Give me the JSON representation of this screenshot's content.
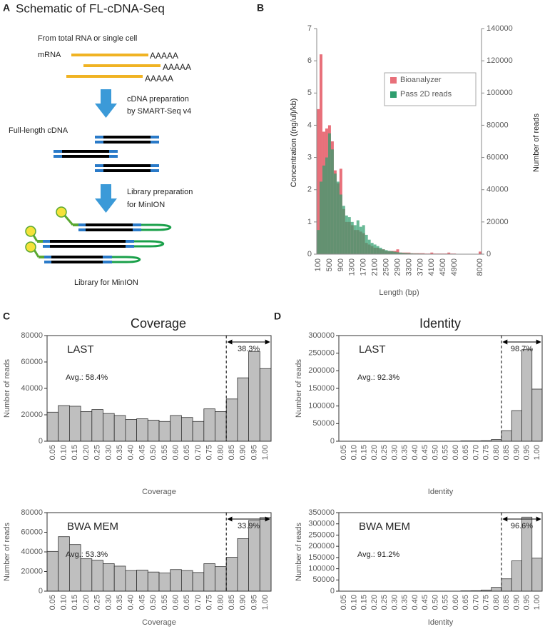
{
  "panels": [
    {
      "letter": "A",
      "title": "Schematic of FL-cDNA-Seq"
    },
    {
      "letter": "B"
    },
    {
      "letter": "C",
      "title": "Coverage"
    },
    {
      "letter": "D",
      "title": "Identity"
    }
  ],
  "schematic": {
    "source": "From  total RNA or single cell",
    "mrna": "mRNA",
    "polya": [
      "AAAAA",
      "AAAAA",
      "AAAAA"
    ],
    "step1": [
      "cDNA preparation",
      "by SMART-Seq v4"
    ],
    "cdna": "Full-length cDNA",
    "step2": [
      "Library preparation",
      "for MinION"
    ],
    "library": "Library for MinION"
  },
  "chart_data": [
    {
      "type": "histogram",
      "xlabel": "Length (bp)",
      "ylabel": "Concentration ((ng/ul)/kb)",
      "y2label": "Number of reads",
      "categories": [
        "100",
        null,
        null,
        null,
        "500",
        null,
        null,
        null,
        "900",
        null,
        null,
        null,
        "1300",
        null,
        null,
        null,
        "1700",
        null,
        null,
        null,
        "2100",
        null,
        null,
        null,
        "2500",
        null,
        null,
        null,
        "2900",
        null,
        null,
        null,
        "3300",
        null,
        null,
        null,
        "3700",
        null,
        null,
        null,
        "4100",
        null,
        null,
        null,
        "4500",
        null,
        null,
        null,
        "4900",
        null,
        null,
        null,
        null,
        null,
        null,
        null,
        null,
        "8000"
      ],
      "series": [
        {
          "name": "Bioanalyzer",
          "color": "#e8707a",
          "axis": "y",
          "values": [
            4.5,
            6.2,
            3.8,
            3.9,
            4.0,
            3.5,
            2.6,
            2.2,
            2.65,
            1.4,
            1.0,
            1.0,
            0.9,
            0.75,
            0.75,
            0.7,
            0.65,
            0.35,
            0.3,
            0.25,
            0.2,
            0.2,
            0.15,
            0.15,
            0.1,
            0.1,
            0.1,
            0.1,
            0.15,
            0.05,
            0.05,
            0.05,
            0.05,
            0.03,
            0.03,
            0.03,
            0.03,
            0.03,
            0.02,
            0.02,
            0.05,
            0.02,
            0.02,
            0.02,
            0.02,
            0.02,
            0.05,
            0.02,
            0.02,
            0.01,
            0.01,
            0.01,
            0.01,
            0.01,
            0.01,
            0.01,
            0.01,
            0.08
          ]
        },
        {
          "name": "Pass 2D reads",
          "color": "#2f9e6e",
          "axis": "y2",
          "values": [
            15000,
            45000,
            55000,
            60000,
            75000,
            65000,
            50000,
            45000,
            37000,
            30000,
            24000,
            23000,
            20000,
            18000,
            21000,
            17000,
            18000,
            12000,
            9000,
            7000,
            6000,
            5000,
            4000,
            3000,
            2500,
            2000,
            1800,
            1500,
            1200,
            1000,
            800,
            700,
            600,
            500,
            400,
            400,
            300,
            300,
            200,
            200,
            200,
            200,
            100,
            100,
            100,
            100,
            100,
            100,
            100,
            0,
            0,
            0,
            0,
            0,
            0,
            0,
            0,
            0
          ]
        }
      ],
      "ylim": [
        0,
        7
      ],
      "yticks": [
        0,
        1,
        2,
        3,
        4,
        5,
        6,
        7
      ],
      "y2lim": [
        0,
        140000
      ],
      "y2ticks": [
        0,
        20000,
        40000,
        60000,
        80000,
        100000,
        120000,
        140000
      ],
      "legend": "upper right"
    },
    {
      "type": "bar",
      "title": "LAST",
      "xlabel": "Coverage",
      "ylabel": "Number of reads",
      "annotations": [
        "Avg.: 58.4%",
        "38.3%"
      ],
      "color": "#bfbfbf",
      "categories": [
        "0.05",
        "0.10",
        "0.15",
        "0.20",
        "0.25",
        "0.30",
        "0.35",
        "0.40",
        "0.45",
        "0.50",
        "0.55",
        "0.60",
        "0.65",
        "0.70",
        "0.75",
        "0.80",
        "0.85",
        "0.90",
        "0.95",
        "1.00"
      ],
      "values": [
        22000,
        27000,
        26500,
        22500,
        24000,
        21000,
        19500,
        16500,
        17000,
        16000,
        15000,
        19500,
        18000,
        15000,
        24500,
        22500,
        32000,
        48000,
        68000,
        55000
      ],
      "ylim": [
        0,
        80000
      ],
      "yticks": [
        0,
        20000,
        40000,
        60000,
        80000
      ]
    },
    {
      "type": "bar",
      "title": "BWA MEM",
      "xlabel": "Coverage",
      "ylabel": "Number of reads",
      "annotations": [
        "Avg.: 53.3%",
        "33.9%"
      ],
      "color": "#bfbfbf",
      "categories": [
        "0.05",
        "0.10",
        "0.15",
        "0.20",
        "0.25",
        "0.30",
        "0.35",
        "0.40",
        "0.45",
        "0.50",
        "0.55",
        "0.60",
        "0.65",
        "0.70",
        "0.75",
        "0.80",
        "0.85",
        "0.90",
        "0.95",
        "1.00"
      ],
      "values": [
        40500,
        55500,
        47500,
        33000,
        31500,
        28000,
        25500,
        21000,
        21500,
        19500,
        18500,
        22000,
        21000,
        19000,
        28000,
        25000,
        34500,
        53500,
        72000,
        75000
      ],
      "ylim": [
        0,
        80000
      ],
      "yticks": [
        0,
        20000,
        40000,
        60000,
        80000
      ]
    },
    {
      "type": "bar",
      "title": "LAST",
      "xlabel": "Identity",
      "ylabel": "Number of reads",
      "annotations": [
        "Avg.: 92.3%",
        "98.7%"
      ],
      "color": "#bfbfbf",
      "categories": [
        "0.05",
        "0.10",
        "0.15",
        "0.20",
        "0.25",
        "0.30",
        "0.35",
        "0.40",
        "0.45",
        "0.50",
        "0.55",
        "0.60",
        "0.65",
        "0.70",
        "0.75",
        "0.80",
        "0.85",
        "0.90",
        "0.95",
        "1.00"
      ],
      "values": [
        0,
        0,
        0,
        0,
        0,
        0,
        0,
        0,
        0,
        0,
        0,
        0,
        1000,
        1000,
        1500,
        5000,
        30000,
        87000,
        260000,
        148000
      ],
      "ylim": [
        0,
        300000
      ],
      "yticks": [
        0,
        50000,
        100000,
        150000,
        200000,
        250000,
        300000
      ]
    },
    {
      "type": "bar",
      "title": "BWA MEM",
      "xlabel": "Identity",
      "ylabel": "Number of reads",
      "annotations": [
        "Avg.: 91.2%",
        "96.6%"
      ],
      "color": "#bfbfbf",
      "categories": [
        "0.05",
        "0.10",
        "0.15",
        "0.20",
        "0.25",
        "0.30",
        "0.35",
        "0.40",
        "0.45",
        "0.50",
        "0.55",
        "0.60",
        "0.65",
        "0.70",
        "0.75",
        "0.80",
        "0.85",
        "0.90",
        "0.95",
        "1.00"
      ],
      "values": [
        0,
        0,
        0,
        0,
        0,
        0,
        0,
        0,
        0,
        0,
        0,
        0,
        1500,
        2000,
        5000,
        17000,
        55000,
        135000,
        330000,
        147000
      ],
      "ylim": [
        0,
        350000
      ],
      "yticks": [
        0,
        50000,
        100000,
        150000,
        200000,
        250000,
        300000,
        350000
      ]
    }
  ]
}
